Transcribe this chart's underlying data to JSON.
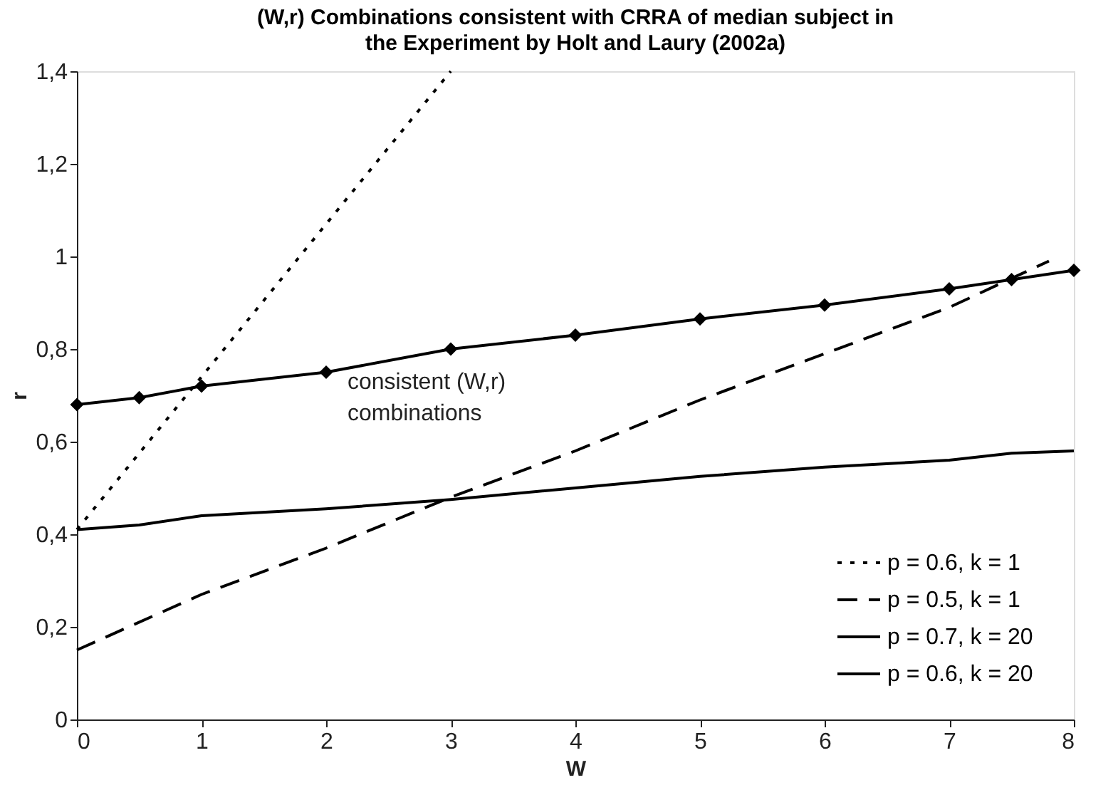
{
  "chart_data": {
    "type": "line",
    "title": "(W,r) Combinations consistent with CRRA of median subject in the Experiment by Holt and Laury (2002a)",
    "xlabel": "W",
    "ylabel": "r",
    "xlim": [
      0,
      8
    ],
    "xticks": [
      0,
      1,
      2,
      3,
      4,
      5,
      6,
      7,
      8
    ],
    "ylim": [
      0,
      1.4
    ],
    "yticks": [
      0,
      {
        "value": 0.2,
        "label": "0,2"
      },
      {
        "value": 0.4,
        "label": "0,4"
      },
      {
        "value": 0.6,
        "label": "0,6"
      },
      {
        "value": 0.8,
        "label": "0,8"
      },
      1,
      {
        "value": 1.2,
        "label": "1,2"
      },
      {
        "value": 1.4,
        "label": "1,4"
      }
    ],
    "grid": false,
    "legend": "bottom right",
    "annotations": [
      "consistent (W,r)\ncombinations"
    ],
    "series": [
      {
        "name": "p = 0.6,  k = 1",
        "color": "#000000",
        "line_style": "dotted",
        "marker": "none",
        "x": [
          0,
          3
        ],
        "values": [
          0.41,
          1.4
        ]
      },
      {
        "name": "p = 0.5,  k = 1",
        "color": "#000000",
        "line_style": "dashed",
        "marker": "none",
        "x": [
          0,
          1,
          2,
          3,
          4,
          5,
          6,
          7,
          7.8
        ],
        "values": [
          0.15,
          0.27,
          0.37,
          0.48,
          0.58,
          0.69,
          0.79,
          0.89,
          0.99
        ]
      },
      {
        "name": "p = 0.7,  k = 20",
        "color": "#000000",
        "line_style": "solid",
        "marker": "diamond",
        "x": [
          0,
          0.5,
          1,
          2,
          3,
          4,
          5,
          6,
          7,
          7.5,
          8
        ],
        "values": [
          0.68,
          0.695,
          0.72,
          0.75,
          0.8,
          0.83,
          0.865,
          0.895,
          0.93,
          0.95,
          0.97
        ]
      },
      {
        "name": "p = 0.6,  k = 20",
        "color": "#000000",
        "line_style": "solid",
        "marker": "none",
        "x": [
          0,
          0.5,
          1,
          2,
          3,
          4,
          5,
          6,
          7,
          7.5,
          8
        ],
        "values": [
          0.41,
          0.42,
          0.44,
          0.455,
          0.475,
          0.5,
          0.525,
          0.545,
          0.56,
          0.575,
          0.58
        ]
      }
    ]
  }
}
